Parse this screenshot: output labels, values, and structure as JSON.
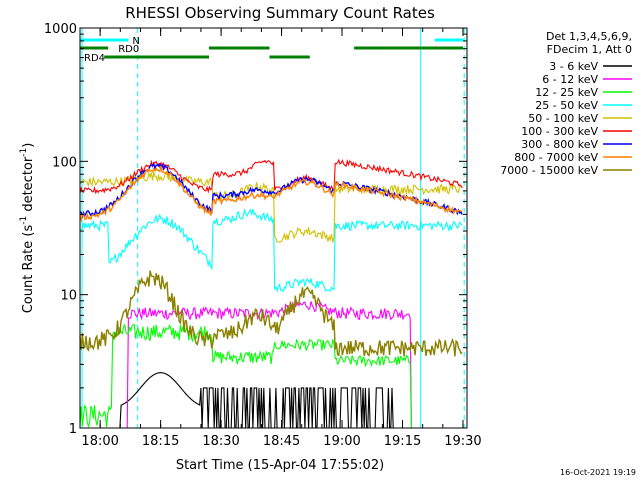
{
  "chart_data": {
    "type": "line",
    "title": "RHESSI Observing Summary Count Rates",
    "xlabel": "Start Time (15-Apr-04 17:55:02)",
    "ylabel_main": "Count Rate (s",
    "ylabel_sup1": "-1",
    "ylabel_mid": " detector",
    "ylabel_sup2": "-1",
    "ylabel_end": ")",
    "xlim": [
      0,
      96
    ],
    "ylim": [
      1,
      1000
    ],
    "yscale": "log",
    "x_ticks": [
      {
        "t": 5,
        "label": "18:00"
      },
      {
        "t": 20,
        "label": "18:15"
      },
      {
        "t": 35,
        "label": "18:30"
      },
      {
        "t": 50,
        "label": "18:45"
      },
      {
        "t": 65,
        "label": "19:00"
      },
      {
        "t": 80,
        "label": "19:15"
      },
      {
        "t": 95,
        "label": "19:30"
      }
    ],
    "y_ticks": [
      {
        "v": 1,
        "label": "1"
      },
      {
        "v": 10,
        "label": "10"
      },
      {
        "v": 100,
        "label": "100"
      },
      {
        "v": 1000,
        "label": "1000"
      }
    ],
    "legend_header": [
      "Det 1,3,4,5,6,9,",
      "FDecim 1, Att 0"
    ],
    "series": [
      {
        "name": "3 - 6 keV",
        "color": "#000000"
      },
      {
        "name": "6 - 12 keV",
        "color": "#ff00ff"
      },
      {
        "name": "12 - 25 keV",
        "color": "#00ff00"
      },
      {
        "name": "25 - 50 keV",
        "color": "#00ffff"
      },
      {
        "name": "50 - 100 keV",
        "color": "#d0c000"
      },
      {
        "name": "100 - 300 keV",
        "color": "#ff0000"
      },
      {
        "name": "300 - 800 keV",
        "color": "#0000ff"
      },
      {
        "name": "800 - 7000 keV",
        "color": "#ff8000"
      },
      {
        "name": "7000 - 15000 keV",
        "color": "#8b8000"
      }
    ],
    "flags": [
      {
        "name": "N",
        "color": "#00ffff",
        "segments": [
          [
            0,
            12
          ],
          [
            88,
            95
          ]
        ]
      },
      {
        "name": "RD0",
        "color": "#008000",
        "segments": [
          [
            0,
            7
          ],
          [
            32,
            47
          ],
          [
            68,
            95
          ]
        ]
      },
      {
        "name": "RD4",
        "color": "#008000",
        "segments": [
          [
            6,
            32
          ],
          [
            47,
            57
          ]
        ]
      }
    ],
    "orbit_marks_solid": [
      0.5,
      84.5
    ],
    "orbit_marks_dashed": [
      14.3,
      95.3
    ],
    "timestamp": "16-Oct-2021 19:19"
  }
}
